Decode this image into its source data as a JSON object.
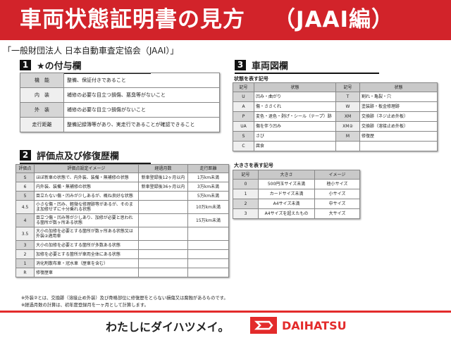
{
  "header": {
    "title": "車両状態証明書の見方",
    "subtitle": "（JAAI編）"
  },
  "organization": "「一般財団法人 日本自動車査定協会（JAAI）」",
  "section1": {
    "number": "1",
    "title": "★の付与欄",
    "rows": [
      {
        "key": "機　能",
        "value": "整備、保証付きであること"
      },
      {
        "key": "内　装",
        "value": "補修の必要な目立つ損傷、悪臭等がないこと"
      },
      {
        "key": "外　装",
        "value": "補修の必要な目立つ損傷がないこと"
      },
      {
        "key": "走行距離",
        "value": "整備記録簿等があり、実走行であることが確認できること"
      }
    ]
  },
  "section2": {
    "number": "2",
    "title": "評価点及び修復歴欄",
    "headers": [
      "評価点",
      "評価点設定イメージ",
      "経過月数",
      "走行距離"
    ],
    "rows": [
      [
        "S",
        "ほぼ新車の状態で、内外装、装備・無補修の状態",
        "新車登録後12ヶ月以内",
        "1万km未満"
      ],
      [
        "6",
        "内外装、装備・無補修の状態",
        "新車登録後36ヶ月以内",
        "3万km未満"
      ],
      [
        "5",
        "目立たない傷・凹みが少しあるが、概ね良好な状態",
        "",
        "5万km未満"
      ],
      [
        "4.5",
        "小さな傷・凹み、軽微な修理跡等があるが、そのまま加修せずに十分乗れる状態",
        "",
        "10万km未満"
      ],
      [
        "4",
        "目立つ傷・凹み等が少しあり、加修が必要と思われる箇所が数ヶ所ある状態",
        "",
        "15万km未満"
      ],
      [
        "3.5",
        "大小の加修を必要とする箇所が数ヶ所ある状態又は外装②適用車",
        "",
        ""
      ],
      [
        "3",
        "大小の加修を必要とする箇所が多数ある状態",
        "",
        ""
      ],
      [
        "2",
        "加修を必要とする箇所が車両全体にある状態",
        "",
        ""
      ],
      [
        "1",
        "消化剤散布車・冠水車（歴車を含む）",
        "",
        ""
      ],
      [
        "R",
        "修復歴車",
        "",
        ""
      ]
    ],
    "notes": [
      "※外装②とは、交換跡（溶接止め外装）及び骨格部位に修復歴をとらない損傷又は腐蝕があるものです。",
      "※経過月数の計算は、初年度登録月を一ヶ月として計算します。"
    ]
  },
  "section3": {
    "number": "3",
    "title": "車両図欄",
    "state_label": "状態を表す記号",
    "state_headers": [
      "記号",
      "状態",
      "記号",
      "状態"
    ],
    "state_rows": [
      [
        "U",
        "凹み・曲がり",
        "T",
        "割れ・亀裂・穴"
      ],
      [
        "A",
        "傷・ささくれ",
        "W",
        "塗装跡・板金修理跡"
      ],
      [
        "P",
        "変色・退色・剥げ・シール（テープ）跡",
        "XM",
        "交換跡（ネジ止め外板）"
      ],
      [
        "UA",
        "傷を伴う凹み",
        "XM②",
        "交換跡（溶接止め外板）"
      ],
      [
        "S",
        "さび",
        "M",
        "修復歴"
      ],
      [
        "C",
        "腐食",
        "",
        ""
      ]
    ],
    "size_label": "大きさを表す記号",
    "size_headers": [
      "記号",
      "大きさ",
      "イメージ"
    ],
    "size_rows": [
      [
        "0",
        "500円玉サイズ未満",
        "極小サイズ"
      ],
      [
        "1",
        "カードサイズ未満",
        "小サイズ"
      ],
      [
        "2",
        "A4サイズ未満",
        "中サイズ"
      ],
      [
        "3",
        "A4サイズを超えたもの",
        "大サイズ"
      ]
    ]
  },
  "footer": {
    "slogan": "わたしにダイハツメイ。",
    "brand": "DAIHATSU",
    "accent": "#e32b2b"
  }
}
